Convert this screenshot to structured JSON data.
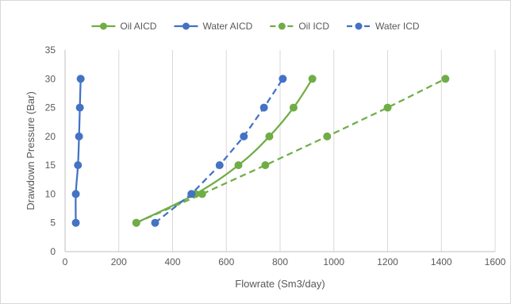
{
  "chart_data": {
    "type": "line",
    "xlabel": "Flowrate (Sm3/day)",
    "ylabel": "Drawdown Pressure (Bar)",
    "xlim": [
      0,
      1600
    ],
    "ylim": [
      0,
      35
    ],
    "xticks": [
      0,
      200,
      400,
      600,
      800,
      1000,
      1200,
      1400,
      1600
    ],
    "yticks": [
      0,
      5,
      10,
      15,
      20,
      25,
      30,
      35
    ],
    "grid": "vertical",
    "legend_position": "top",
    "series": [
      {
        "name": "Oil AICD",
        "color": "#70AD47",
        "dash": "solid",
        "points": [
          [
            265,
            5
          ],
          [
            485,
            10
          ],
          [
            645,
            15
          ],
          [
            760,
            20
          ],
          [
            850,
            25
          ],
          [
            920,
            30
          ]
        ]
      },
      {
        "name": "Water AICD",
        "color": "#4472C4",
        "dash": "solid",
        "points": [
          [
            40,
            5
          ],
          [
            40,
            10
          ],
          [
            48,
            15
          ],
          [
            52,
            20
          ],
          [
            55,
            25
          ],
          [
            58,
            30
          ]
        ]
      },
      {
        "name": "Oil ICD",
        "color": "#70AD47",
        "dash": "dashed",
        "points": [
          [
            265,
            5
          ],
          [
            510,
            10
          ],
          [
            745,
            15
          ],
          [
            975,
            20
          ],
          [
            1200,
            25
          ],
          [
            1415,
            30
          ]
        ]
      },
      {
        "name": "Water ICD",
        "color": "#4472C4",
        "dash": "dashed",
        "points": [
          [
            335,
            5
          ],
          [
            470,
            10
          ],
          [
            575,
            15
          ],
          [
            665,
            20
          ],
          [
            740,
            25
          ],
          [
            810,
            30
          ]
        ]
      }
    ]
  }
}
